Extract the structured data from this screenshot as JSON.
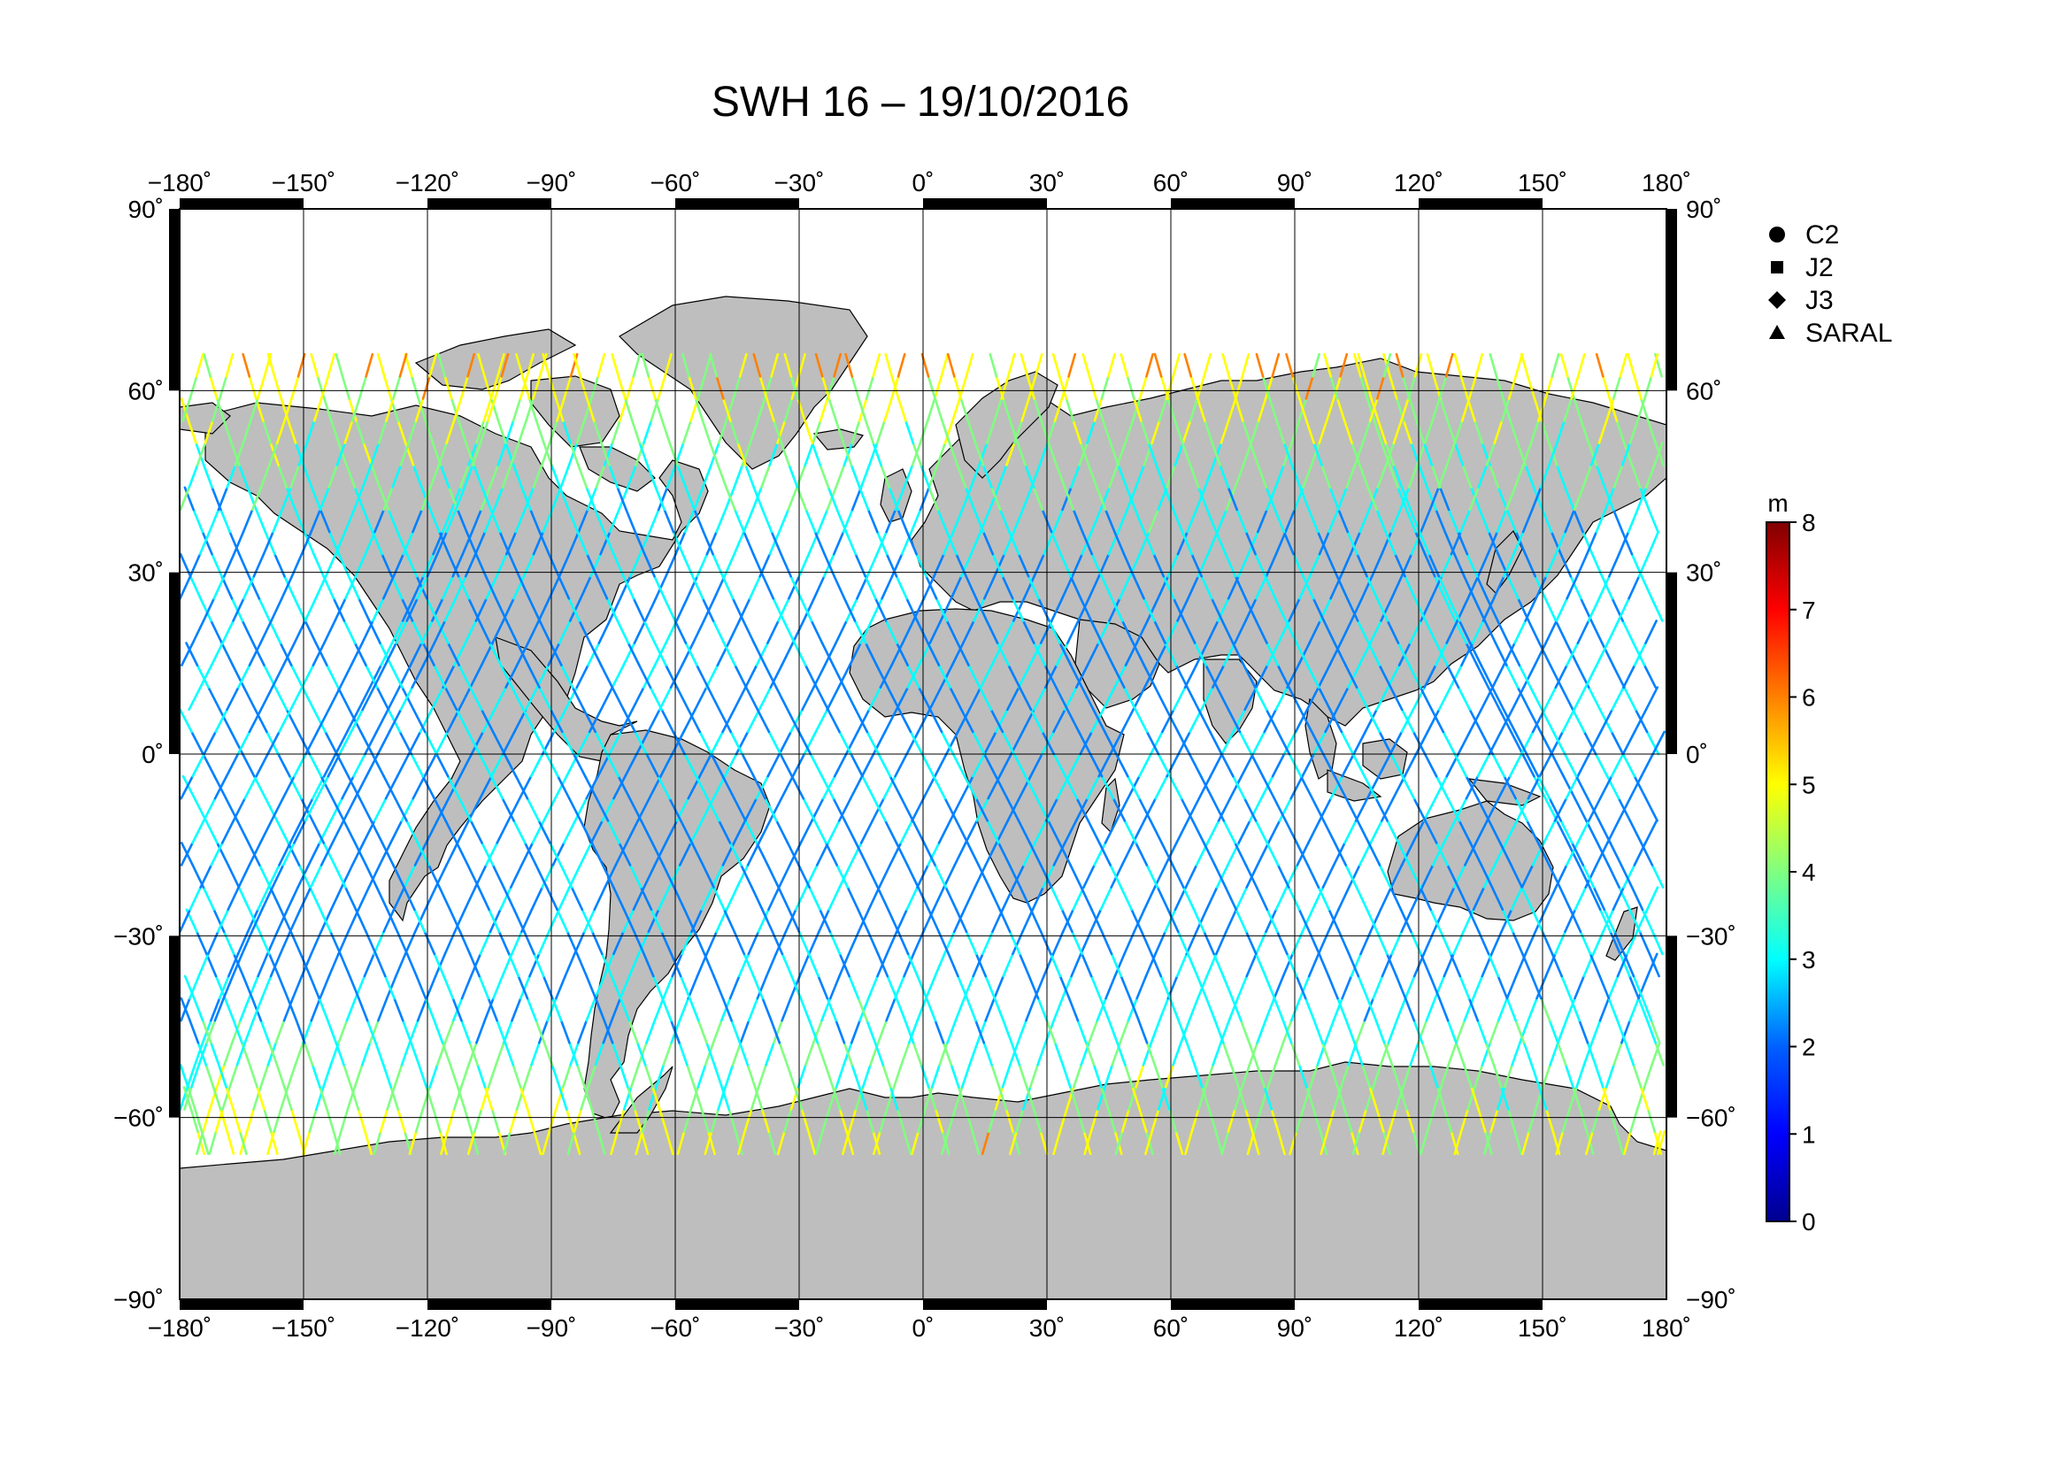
{
  "title": "SWH 16 – 19/10/2016",
  "map": {
    "lon_ticks": [
      "−180˚",
      "−150˚",
      "−120˚",
      "−90˚",
      "−60˚",
      "−30˚",
      "0˚",
      "30˚",
      "60˚",
      "90˚",
      "120˚",
      "150˚",
      "180˚"
    ],
    "lat_ticks": [
      "90˚",
      "60˚",
      "30˚",
      "0˚",
      "−30˚",
      "−60˚",
      "−90˚"
    ],
    "lon_range": [
      -180,
      180
    ],
    "lat_range": [
      -90,
      90
    ],
    "grid": true,
    "land_color": "#bebebe",
    "ocean_color": "#ffffff"
  },
  "legend": {
    "items": [
      {
        "label": "C2",
        "symbol": "circle"
      },
      {
        "label": "J2",
        "symbol": "square"
      },
      {
        "label": "J3",
        "symbol": "diamond"
      },
      {
        "label": "SARAL",
        "symbol": "triangle"
      }
    ]
  },
  "colorbar": {
    "unit": "m",
    "ticks": [
      "0",
      "1",
      "2",
      "3",
      "4",
      "5",
      "6",
      "7",
      "8"
    ],
    "range": [
      0,
      8
    ],
    "colors": [
      "#00008f",
      "#0000ff",
      "#0080ff",
      "#00ffff",
      "#80ff80",
      "#ffff00",
      "#ff8000",
      "#ff0000",
      "#800000"
    ]
  }
}
